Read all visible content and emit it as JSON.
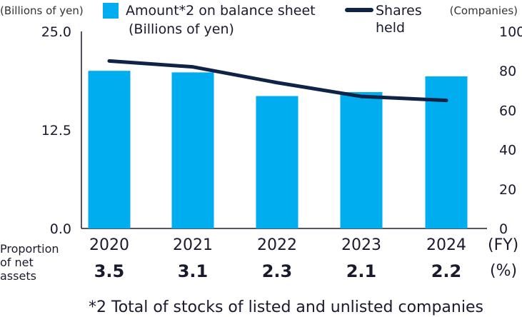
{
  "chart_data": {
    "type": "bar",
    "categories": [
      "2020",
      "2021",
      "2022",
      "2023",
      "2024"
    ],
    "series": [
      {
        "name": "Amount*2 on balance sheet (Billions of yen)",
        "type": "bar",
        "axis": "left",
        "values": [
          20.0,
          19.8,
          16.8,
          17.3,
          19.3
        ]
      },
      {
        "name": "Shares held",
        "type": "line",
        "axis": "right",
        "values": [
          85,
          82,
          74,
          67,
          65
        ]
      }
    ],
    "left_axis": {
      "unit_label": "(Billions of yen)",
      "ylim": [
        0,
        25
      ],
      "ticks": [
        "0.0",
        "12.5",
        "25.0"
      ]
    },
    "right_axis": {
      "unit_label": "(Companies)",
      "ylim": [
        0,
        100
      ],
      "ticks": [
        "0",
        "20",
        "40",
        "60",
        "80",
        "100"
      ]
    },
    "x_unit": "(FY)",
    "legend": {
      "bar_label_line1": "Amount*2 on balance sheet",
      "bar_label_line2": "(Billions of yen)",
      "line_label_line1": "Shares",
      "line_label_line2": "held",
      "placement": "top"
    },
    "proportion": {
      "label_lines": [
        "Proportion",
        "of net",
        "assets"
      ],
      "values": [
        "3.5",
        "3.1",
        "2.3",
        "2.1",
        "2.2"
      ],
      "unit": "(%)"
    },
    "footnote": "*2 Total of stocks of listed and unlisted companies",
    "colors": {
      "bar": "#00adef",
      "line": "#0f2347",
      "axis": "#1a1a2e"
    }
  }
}
